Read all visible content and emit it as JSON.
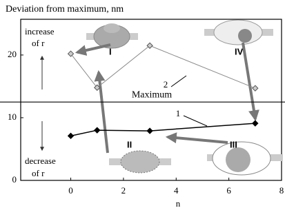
{
  "chart_data": {
    "type": "line",
    "title": "Deviation from maximum, nm",
    "x_label": "n",
    "xlim": [
      -1.9,
      8
    ],
    "xticks": [
      0,
      2,
      4,
      6,
      8
    ],
    "ylim": [
      0,
      25.7
    ],
    "yticks": [
      0,
      10,
      20
    ],
    "series": [
      {
        "name": "1",
        "color": "#000000",
        "x": [
          0,
          1,
          3,
          7
        ],
        "values": [
          7.1,
          8.0,
          7.9,
          9.1
        ]
      },
      {
        "name": "2",
        "color": "#8a8a8a",
        "x": [
          0,
          1,
          3,
          7
        ],
        "values": [
          20.2,
          14.8,
          21.5,
          14.7
        ]
      }
    ],
    "reference_line": {
      "value": 12.5,
      "label": "Maximum"
    },
    "annotations": {
      "increase": [
        "increase",
        "of r"
      ],
      "decrease": [
        "decrease",
        "of r"
      ],
      "stages": [
        "I",
        "II",
        "III",
        "IV"
      ]
    }
  }
}
